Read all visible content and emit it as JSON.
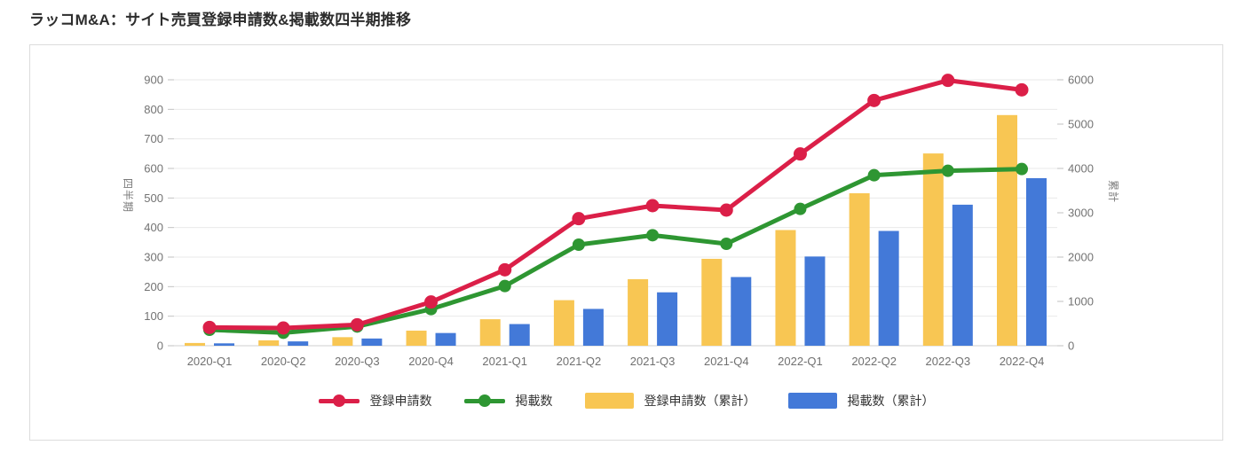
{
  "title": "ラッコM&A：サイト売買登録申請数&掲載数四半期推移",
  "chart_data": {
    "type": "combo-bar-line",
    "categories": [
      "2020-Q1",
      "2020-Q2",
      "2020-Q3",
      "2020-Q4",
      "2021-Q1",
      "2021-Q2",
      "2021-Q3",
      "2021-Q4",
      "2022-Q1",
      "2022-Q2",
      "2022-Q3",
      "2022-Q4"
    ],
    "series": [
      {
        "name": "登録申請数",
        "type": "line",
        "axis": "left",
        "color": "#db1f48",
        "values": [
          62,
          60,
          71,
          148,
          257,
          430,
          474,
          459,
          649,
          830,
          898,
          866
        ]
      },
      {
        "name": "掲載数",
        "type": "line",
        "axis": "left",
        "color": "#2e9632",
        "values": [
          54,
          44,
          65,
          124,
          202,
          342,
          374,
          345,
          463,
          577,
          592,
          598
        ]
      },
      {
        "name": "登録申請数（累計）",
        "type": "bar",
        "axis": "right",
        "color": "#f8c653",
        "values": [
          62,
          122,
          193,
          341,
          598,
          1028,
          1502,
          1961,
          2610,
          3440,
          4338,
          5204
        ]
      },
      {
        "name": "掲載数（累計）",
        "type": "bar",
        "axis": "right",
        "color": "#4379d8",
        "values": [
          54,
          98,
          163,
          287,
          489,
          831,
          1205,
          1550,
          2013,
          2590,
          3182,
          3780
        ]
      }
    ],
    "left_axis": {
      "title": "四半期",
      "min": 0,
      "max": 900,
      "ticks": [
        0,
        100,
        200,
        300,
        400,
        500,
        600,
        700,
        800,
        900
      ]
    },
    "right_axis": {
      "title": "累計",
      "min": 0,
      "max": 6000,
      "ticks": [
        0,
        1000,
        2000,
        3000,
        4000,
        5000,
        6000
      ]
    },
    "legend_position": "bottom",
    "grid": true,
    "grid_color": "#e9e9e9",
    "baseline_color": "#cfcfcf",
    "tick_mark_color": "#c2c2c2"
  }
}
